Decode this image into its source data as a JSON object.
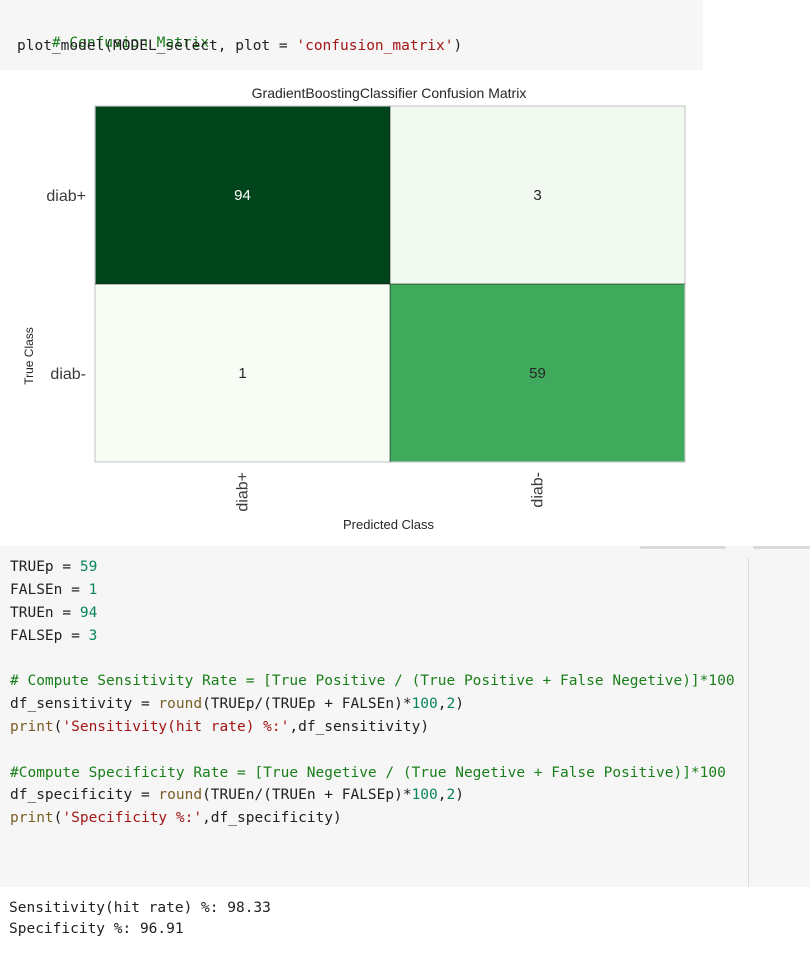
{
  "cell1": {
    "comment": "# Confusion Matrix",
    "call_fn": "plot_model(MODEL_select, plot = ",
    "call_arg": "'confusion_matrix'",
    "call_end": ")"
  },
  "chart_data": {
    "type": "heatmap",
    "title": "GradientBoostingClassifier Confusion Matrix",
    "xlabel": "Predicted Class",
    "ylabel": "True Class",
    "x_categories": [
      "diab+",
      "diab-"
    ],
    "y_categories": [
      "diab+",
      "diab-"
    ],
    "values": [
      [
        94,
        3
      ],
      [
        1,
        59
      ]
    ],
    "colors": {
      "high": "#00441b",
      "mid": "#41ab5d",
      "low": "#f7fcf5",
      "border": "#cccccc"
    }
  },
  "cell2": {
    "l1_var": "TRUEp",
    "l1_eq": " = ",
    "l1_val": "59",
    "l2_var": "FALSEn",
    "l2_eq": " = ",
    "l2_val": "1",
    "l3_var": "TRUEn",
    "l3_eq": " = ",
    "l3_val": "94",
    "l4_var": "FALSEp",
    "l4_eq": " = ",
    "l4_val": "3",
    "c1": "# Compute Sensitivity Rate = [True Positive / (True Positive + False Negetive)]*100",
    "s1a": "df_sensitivity = ",
    "s1b": "round",
    "s1c": "(TRUEp/(TRUEp + FALSEn)*",
    "s1d": "100",
    "s1e": ",",
    "s1f": "2",
    "s1g": ")",
    "p1a": "print",
    "p1b": "(",
    "p1c": "'Sensitivity(hit rate) %:'",
    "p1d": ",df_sensitivity)",
    "c2": "#Compute Specificity Rate = [True Negetive / (True Negetive + False Positive)]*100",
    "s2a": "df_specificity = ",
    "s2b": "round",
    "s2c": "(TRUEn/(TRUEn + FALSEp)*",
    "s2d": "100",
    "s2e": ",",
    "s2f": "2",
    "s2g": ")",
    "p2a": "print",
    "p2b": "(",
    "p2c": "'Specificity %:'",
    "p2d": ",df_specificity)"
  },
  "output": {
    "line1": "Sensitivity(hit rate) %: 98.33",
    "line2": "Specificity %: 96.91"
  }
}
